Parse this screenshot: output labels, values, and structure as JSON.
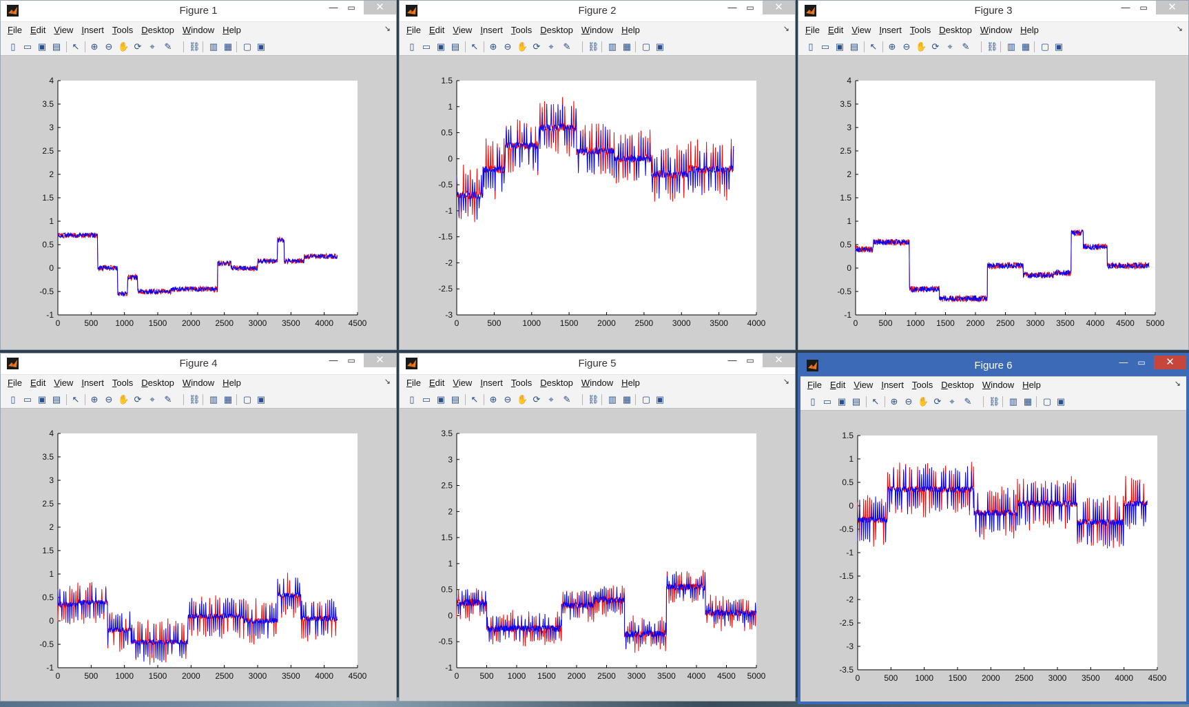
{
  "menu": [
    "File",
    "Edit",
    "View",
    "Insert",
    "Tools",
    "Desktop",
    "Window",
    "Help"
  ],
  "series_colors": {
    "red": "#ff0000",
    "blue": "#0000ff",
    "axes_bg": "#ffffff",
    "figure_bg": "#cfcfcf",
    "active_border": "#3d6ab6"
  },
  "figures": [
    {
      "id": 1,
      "title": "Figure 1",
      "active": false,
      "chart_data": {
        "type": "line",
        "xlim": [
          0,
          4500
        ],
        "ylim": [
          -1,
          4
        ],
        "xticks": [
          "0",
          "500",
          "1000",
          "1500",
          "2000",
          "2500",
          "3000",
          "3500",
          "4000",
          "4500"
        ],
        "yticks": [
          "-1",
          "-0.5",
          "0",
          "0.5",
          "1",
          "1.5",
          "2",
          "2.5",
          "3",
          "3.5",
          "4"
        ],
        "n_points": 4200,
        "series": [
          {
            "color": "red",
            "noise": 0.06,
            "ripple": 0.0,
            "segments": [
              [
                0,
                600,
                0.7
              ],
              [
                600,
                900,
                0.0
              ],
              [
                900,
                1050,
                -0.55
              ],
              [
                1050,
                1200,
                -0.2
              ],
              [
                1200,
                1700,
                -0.5
              ],
              [
                1700,
                2400,
                -0.45
              ],
              [
                2400,
                2600,
                0.1
              ],
              [
                2600,
                3000,
                0.0
              ],
              [
                3000,
                3300,
                0.15
              ],
              [
                3300,
                3400,
                0.6
              ],
              [
                3400,
                3700,
                0.15
              ],
              [
                3700,
                4200,
                0.25
              ]
            ]
          },
          {
            "color": "blue",
            "noise": 0.05,
            "ripple": 0.0,
            "segments": [
              [
                0,
                600,
                0.7
              ],
              [
                600,
                900,
                0.0
              ],
              [
                900,
                1050,
                -0.55
              ],
              [
                1050,
                1200,
                -0.2
              ],
              [
                1200,
                1700,
                -0.5
              ],
              [
                1700,
                2400,
                -0.45
              ],
              [
                2400,
                2600,
                0.1
              ],
              [
                2600,
                3000,
                0.0
              ],
              [
                3000,
                3300,
                0.15
              ],
              [
                3300,
                3400,
                0.6
              ],
              [
                3400,
                3700,
                0.15
              ],
              [
                3700,
                4200,
                0.25
              ]
            ]
          }
        ]
      }
    },
    {
      "id": 2,
      "title": "Figure 2",
      "active": false,
      "chart_data": {
        "type": "line",
        "xlim": [
          0,
          4000
        ],
        "ylim": [
          -3,
          1.5
        ],
        "xticks": [
          "0",
          "500",
          "1000",
          "1500",
          "2000",
          "2500",
          "3000",
          "3500",
          "4000"
        ],
        "yticks": [
          "-3",
          "-2.5",
          "-2",
          "-1.5",
          "-1",
          "-0.5",
          "0",
          "0.5",
          "1",
          "1.5"
        ],
        "n_points": 3700,
        "series": [
          {
            "color": "red",
            "noise": 0.08,
            "ripple": 0.55,
            "segments": [
              [
                0,
                350,
                -0.7
              ],
              [
                350,
                650,
                -0.2
              ],
              [
                650,
                1100,
                0.25
              ],
              [
                1100,
                1600,
                0.6
              ],
              [
                1600,
                2100,
                0.15
              ],
              [
                2100,
                2600,
                0.0
              ],
              [
                2600,
                3100,
                -0.3
              ],
              [
                3100,
                3700,
                -0.2
              ]
            ]
          },
          {
            "color": "blue",
            "noise": 0.06,
            "ripple": 0.45,
            "segments": [
              [
                0,
                350,
                -0.7
              ],
              [
                350,
                650,
                -0.2
              ],
              [
                650,
                1100,
                0.25
              ],
              [
                1100,
                1600,
                0.6
              ],
              [
                1600,
                2100,
                0.15
              ],
              [
                2100,
                2600,
                0.0
              ],
              [
                2600,
                3100,
                -0.3
              ],
              [
                3100,
                3700,
                -0.2
              ]
            ]
          }
        ]
      }
    },
    {
      "id": 3,
      "title": "Figure 3",
      "active": false,
      "chart_data": {
        "type": "line",
        "xlim": [
          0,
          5000
        ],
        "ylim": [
          -1,
          4
        ],
        "xticks": [
          "0",
          "500",
          "1000",
          "1500",
          "2000",
          "2500",
          "3000",
          "3500",
          "4000",
          "4500",
          "5000"
        ],
        "yticks": [
          "-1",
          "-0.5",
          "0",
          "0.5",
          "1",
          "1.5",
          "2",
          "2.5",
          "3",
          "3.5",
          "4"
        ],
        "n_points": 4900,
        "series": [
          {
            "color": "red",
            "noise": 0.07,
            "ripple": 0.0,
            "segments": [
              [
                0,
                300,
                0.4
              ],
              [
                300,
                900,
                0.55
              ],
              [
                900,
                1400,
                -0.45
              ],
              [
                1400,
                2200,
                -0.65
              ],
              [
                2200,
                2800,
                0.05
              ],
              [
                2800,
                3300,
                -0.15
              ],
              [
                3300,
                3600,
                -0.1
              ],
              [
                3600,
                3800,
                0.75
              ],
              [
                3800,
                4200,
                0.45
              ],
              [
                4200,
                4900,
                0.05
              ]
            ]
          },
          {
            "color": "blue",
            "noise": 0.06,
            "ripple": 0.0,
            "segments": [
              [
                0,
                300,
                0.4
              ],
              [
                300,
                900,
                0.55
              ],
              [
                900,
                1400,
                -0.45
              ],
              [
                1400,
                2200,
                -0.65
              ],
              [
                2200,
                2800,
                0.05
              ],
              [
                2800,
                3300,
                -0.15
              ],
              [
                3300,
                3600,
                -0.1
              ],
              [
                3600,
                3800,
                0.75
              ],
              [
                3800,
                4200,
                0.45
              ],
              [
                4200,
                4900,
                0.05
              ]
            ]
          }
        ]
      }
    },
    {
      "id": 4,
      "title": "Figure 4",
      "active": false,
      "chart_data": {
        "type": "line",
        "xlim": [
          0,
          4500
        ],
        "ylim": [
          -1,
          4
        ],
        "xticks": [
          "0",
          "500",
          "1000",
          "1500",
          "2000",
          "2500",
          "3000",
          "3500",
          "4000",
          "4500"
        ],
        "yticks": [
          "-1",
          "-0.5",
          "0",
          "0.5",
          "1",
          "1.5",
          "2",
          "2.5",
          "3",
          "3.5",
          "4"
        ],
        "n_points": 4200,
        "series": [
          {
            "color": "red",
            "noise": 0.06,
            "ripple": 0.45,
            "segments": [
              [
                0,
                300,
                0.35
              ],
              [
                300,
                750,
                0.4
              ],
              [
                750,
                1100,
                -0.2
              ],
              [
                1100,
                1950,
                -0.45
              ],
              [
                1950,
                2800,
                0.1
              ],
              [
                2800,
                3300,
                0.0
              ],
              [
                3300,
                3650,
                0.55
              ],
              [
                3650,
                4200,
                0.05
              ]
            ]
          },
          {
            "color": "blue",
            "noise": 0.05,
            "ripple": 0.4,
            "segments": [
              [
                0,
                300,
                0.35
              ],
              [
                300,
                750,
                0.4
              ],
              [
                750,
                1100,
                -0.2
              ],
              [
                1100,
                1950,
                -0.45
              ],
              [
                1950,
                2800,
                0.1
              ],
              [
                2800,
                3300,
                0.0
              ],
              [
                3300,
                3650,
                0.55
              ],
              [
                3650,
                4200,
                0.05
              ]
            ]
          }
        ]
      }
    },
    {
      "id": 5,
      "title": "Figure 5",
      "active": false,
      "chart_data": {
        "type": "line",
        "xlim": [
          0,
          5000
        ],
        "ylim": [
          -1,
          3.5
        ],
        "xticks": [
          "0",
          "500",
          "1000",
          "1500",
          "2000",
          "2500",
          "3000",
          "3500",
          "4000",
          "4500",
          "5000"
        ],
        "yticks": [
          "-1",
          "-0.5",
          "0",
          "0.5",
          "1",
          "1.5",
          "2",
          "2.5",
          "3",
          "3.5"
        ],
        "n_points": 5000,
        "series": [
          {
            "color": "red",
            "noise": 0.07,
            "ripple": 0.3,
            "segments": [
              [
                0,
                500,
                0.25
              ],
              [
                500,
                1750,
                -0.25
              ],
              [
                1750,
                2300,
                0.2
              ],
              [
                2300,
                2800,
                0.3
              ],
              [
                2800,
                3500,
                -0.35
              ],
              [
                3500,
                4150,
                0.55
              ],
              [
                4150,
                5000,
                0.05
              ]
            ]
          },
          {
            "color": "blue",
            "noise": 0.06,
            "ripple": 0.25,
            "segments": [
              [
                0,
                500,
                0.25
              ],
              [
                500,
                1750,
                -0.25
              ],
              [
                1750,
                2300,
                0.2
              ],
              [
                2300,
                2800,
                0.3
              ],
              [
                2800,
                3500,
                -0.35
              ],
              [
                3500,
                4150,
                0.55
              ],
              [
                4150,
                5000,
                0.05
              ]
            ]
          }
        ]
      }
    },
    {
      "id": 6,
      "title": "Figure 6",
      "active": true,
      "chart_data": {
        "type": "line",
        "xlim": [
          0,
          4500
        ],
        "ylim": [
          -3.5,
          1.5
        ],
        "xticks": [
          "0",
          "500",
          "1000",
          "1500",
          "2000",
          "2500",
          "3000",
          "3500",
          "4000",
          "4500"
        ],
        "yticks": [
          "-3.5",
          "-3",
          "-2.5",
          "-2",
          "-1.5",
          "-1",
          "-0.5",
          "0",
          "0.5",
          "1",
          "1.5"
        ],
        "n_points": 4350,
        "series": [
          {
            "color": "red",
            "noise": 0.07,
            "ripple": 0.55,
            "segments": [
              [
                0,
                450,
                -0.3
              ],
              [
                450,
                1750,
                0.35
              ],
              [
                1750,
                2400,
                -0.15
              ],
              [
                2400,
                3300,
                0.05
              ],
              [
                3300,
                4000,
                -0.35
              ],
              [
                4000,
                4350,
                0.05
              ]
            ]
          },
          {
            "color": "blue",
            "noise": 0.06,
            "ripple": 0.5,
            "segments": [
              [
                0,
                450,
                -0.3
              ],
              [
                450,
                1750,
                0.35
              ],
              [
                1750,
                2400,
                -0.15
              ],
              [
                2400,
                3300,
                0.05
              ],
              [
                3300,
                4000,
                -0.35
              ],
              [
                4000,
                4350,
                0.05
              ]
            ]
          }
        ]
      }
    }
  ]
}
